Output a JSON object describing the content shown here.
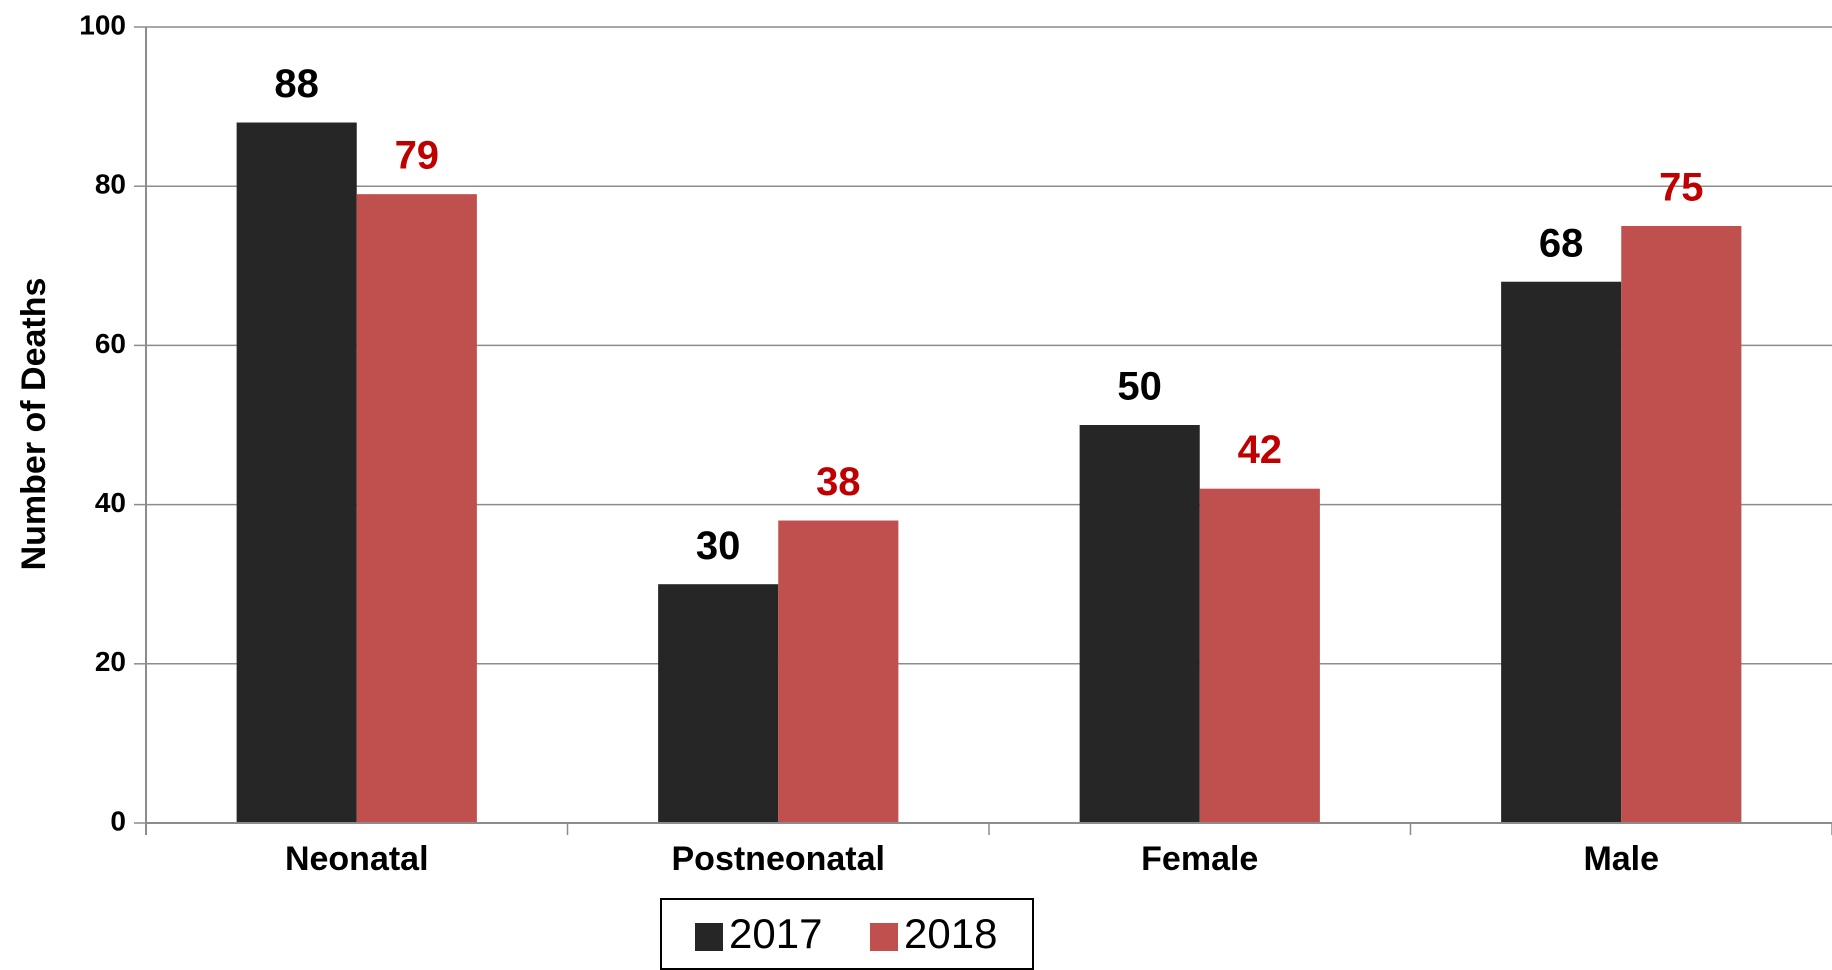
{
  "chart_data": {
    "type": "bar",
    "y_label": "Number of Deaths",
    "categories": [
      "Neonatal",
      "Postneonatal",
      "Female",
      "Male"
    ],
    "series": [
      {
        "name": "2017",
        "color": "#262626",
        "label_color": "#000000",
        "values": [
          88,
          30,
          50,
          68
        ]
      },
      {
        "name": "2018",
        "color": "#c0504d",
        "label_color": "#c00000",
        "values": [
          79,
          38,
          42,
          75
        ]
      }
    ],
    "ylim": [
      0,
      100
    ],
    "yticks": [
      0,
      20,
      40,
      60,
      80,
      100
    ],
    "grid": true,
    "legend": "bottom"
  }
}
